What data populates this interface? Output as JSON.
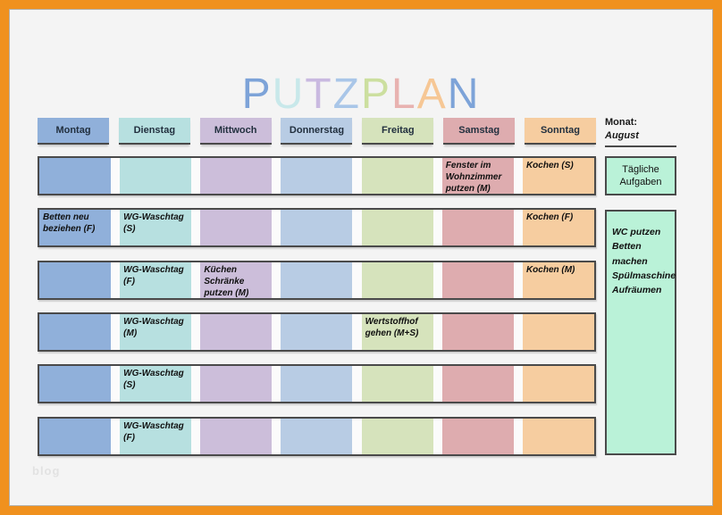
{
  "frame_color": "#f0911e",
  "title": {
    "text": "PUTZPLAN",
    "letters": [
      {
        "char": "P",
        "color": "#7da3d8"
      },
      {
        "char": "U",
        "color": "#c8e8ea"
      },
      {
        "char": "T",
        "color": "#c9b9e0"
      },
      {
        "char": "Z",
        "color": "#a9c6e8"
      },
      {
        "char": "P",
        "color": "#ccdf9f"
      },
      {
        "char": "L",
        "color": "#e8b2b0"
      },
      {
        "char": "A",
        "color": "#f6c795"
      },
      {
        "char": "N",
        "color": "#7da3d8"
      }
    ]
  },
  "month": {
    "label": "Monat:",
    "value": "August"
  },
  "days": [
    {
      "name": "Montag",
      "color": "#90b0da"
    },
    {
      "name": "Dienstag",
      "color": "#b7e0e0"
    },
    {
      "name": "Mittwoch",
      "color": "#ccbeda"
    },
    {
      "name": "Donnerstag",
      "color": "#b8cce4"
    },
    {
      "name": "Freitag",
      "color": "#d6e3bc"
    },
    {
      "name": "Samstag",
      "color": "#deacaf"
    },
    {
      "name": "Sonntag",
      "color": "#f6cda0"
    }
  ],
  "weeks": [
    {
      "tasks": [
        "",
        "",
        "",
        "",
        "",
        "Fenster im Wohnzimmer putzen (M)",
        "Kochen (S)"
      ]
    },
    {
      "tasks": [
        "Betten neu beziehen (F)",
        "WG-Waschtag (S)",
        "",
        "",
        "",
        "",
        "Kochen (F)"
      ]
    },
    {
      "tasks": [
        "",
        "WG-Waschtag (F)",
        "Küchen Schränke putzen (M)",
        "",
        "",
        "",
        "Kochen (M)"
      ]
    },
    {
      "tasks": [
        "",
        "WG-Waschtag (M)",
        "",
        "",
        "Wertstoffhof gehen (M+S)",
        "",
        ""
      ]
    },
    {
      "tasks": [
        "",
        "WG-Waschtag (S)",
        "",
        "",
        "",
        "",
        ""
      ]
    },
    {
      "tasks": [
        "",
        "WG-Waschtag (F)",
        "",
        "",
        "",
        "",
        ""
      ]
    }
  ],
  "daily_tasks": {
    "title": "Tägliche Aufgaben",
    "items": [
      "WC putzen",
      "Betten machen",
      "Spülmaschine",
      "Aufräumen"
    ],
    "box_color": "#baf2d8"
  },
  "watermark": "blog"
}
